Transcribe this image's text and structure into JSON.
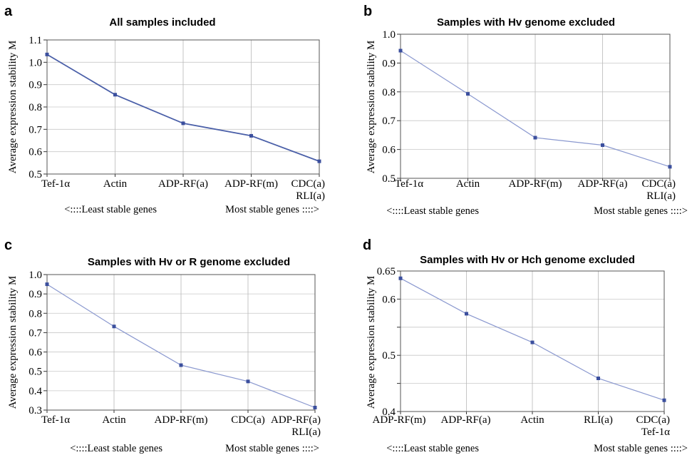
{
  "chart_data": [
    {
      "panel": "a",
      "type": "line",
      "title": "All samples included",
      "ylabel": "Average expression stability M",
      "categories": [
        "Tef-1α",
        "Actin",
        "ADP-RF(a)",
        "ADP-RF(m)",
        "CDC(a)\nRLI(a)"
      ],
      "values": [
        1.035,
        0.855,
        0.727,
        0.671,
        0.557
      ],
      "ylim": [
        0.5,
        1.1
      ],
      "yticks": [
        0.5,
        0.6,
        0.7,
        0.8,
        0.9,
        1.0,
        1.1
      ],
      "yticklabels": [
        "0.5",
        "0.6",
        "0.7",
        "0.8",
        "0.9",
        "1.0",
        "1.1"
      ],
      "grid": true,
      "line_color": "#4a5fa8",
      "note_left": "<::::Least stable genes",
      "note_right": "Most stable genes ::::>"
    },
    {
      "panel": "b",
      "type": "line",
      "title": "Samples with Hv genome excluded",
      "ylabel": "Average expression stability M",
      "categories": [
        "Tef-1α",
        "Actin",
        "ADP-RF(m)",
        "ADP-RF(a)",
        "CDC(a)\nRLI(a)"
      ],
      "values": [
        0.943,
        0.793,
        0.641,
        0.615,
        0.54
      ],
      "ylim": [
        0.5,
        1.0
      ],
      "yticks": [
        0.5,
        0.6,
        0.7,
        0.8,
        0.9,
        1.0
      ],
      "yticklabels": [
        "0.5",
        "0.6",
        "0.7",
        "0.8",
        "0.9",
        "1.0"
      ],
      "grid": true,
      "line_color": "#8a98cf",
      "note_left": "<::::Least stable genes",
      "note_right": "Most stable genes ::::>"
    },
    {
      "panel": "c",
      "type": "line",
      "title": "Samples with Hv or R genome excluded",
      "ylabel": "Average expression stability M",
      "categories": [
        "Tef-1α",
        "Actin",
        "ADP-RF(m)",
        "CDC(a)",
        "ADP-RF(a)\nRLI(a)"
      ],
      "values": [
        0.95,
        0.732,
        0.532,
        0.448,
        0.313
      ],
      "ylim": [
        0.3,
        1.0
      ],
      "yticks": [
        0.3,
        0.4,
        0.5,
        0.6,
        0.7,
        0.8,
        0.9,
        1.0
      ],
      "yticklabels": [
        "0.3",
        "0.4",
        "0.5",
        "0.6",
        "0.7",
        "0.8",
        "0.9",
        "1.0"
      ],
      "grid": true,
      "line_color": "#8a98cf",
      "note_left": "<::::Least stable genes",
      "note_right": "Most stable genes ::::>"
    },
    {
      "panel": "d",
      "type": "line",
      "title": "Samples with Hv or Hch genome excluded",
      "ylabel": "Average expression stability M",
      "categories": [
        "ADP-RF(m)",
        "ADP-RF(a)",
        "Actin",
        "RLI(a)",
        "CDC(a)\nTef-1α"
      ],
      "values": [
        0.637,
        0.574,
        0.523,
        0.459,
        0.42
      ],
      "ylim": [
        0.4,
        0.65
      ],
      "yticks": [
        0.4,
        0.45,
        0.5,
        0.55,
        0.6,
        0.65
      ],
      "yticklabels": [
        "0.4",
        "",
        "0.5",
        "",
        "0.6",
        "0.65"
      ],
      "grid": true,
      "line_color": "#8a98cf",
      "note_left": "<::::Least stable genes",
      "note_right": "Most stable genes ::::>"
    }
  ]
}
